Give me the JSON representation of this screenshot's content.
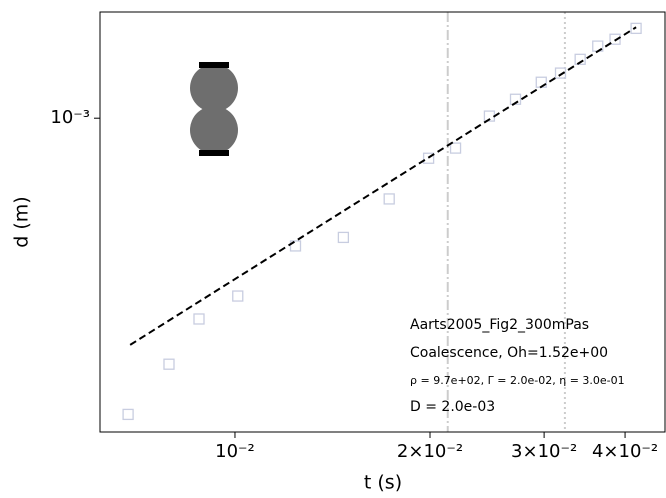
{
  "chart_data": {
    "type": "scatter",
    "xlabel": "t (s)",
    "ylabel": "d (m)",
    "xscale": "log",
    "yscale": "log",
    "xlim": [
      0.00619,
      0.0461
    ],
    "ylim": [
      0.000412,
      0.00135
    ],
    "xticks": [
      {
        "value": 0.01,
        "label": "10⁻²"
      },
      {
        "value": 0.02,
        "label": "2×10⁻²"
      },
      {
        "value": 0.03,
        "label": "3×10⁻²"
      },
      {
        "value": 0.04,
        "label": "4×10⁻²"
      }
    ],
    "yticks": [
      {
        "value": 0.001,
        "label": "10⁻³"
      }
    ],
    "series": [
      {
        "color": "#c8cde0",
        "x": [
          0.00684,
          0.00791,
          0.0088,
          0.0101,
          0.0124,
          0.0147,
          0.0173,
          0.0199,
          0.0219,
          0.0247,
          0.0271,
          0.0297,
          0.0318,
          0.0341,
          0.0363,
          0.0386,
          0.0416
        ],
        "values": [
          0.000433,
          0.000499,
          0.000567,
          0.000605,
          0.000697,
          0.000714,
          0.000796,
          0.000893,
          0.000919,
          0.001006,
          0.001055,
          0.001107,
          0.001136,
          0.001181,
          0.001226,
          0.00125,
          0.001289
        ]
      }
    ],
    "fit": {
      "color": "#000000",
      "x": [
        0.00689,
        0.0416
      ],
      "values": [
        0.000527,
        0.001293
      ]
    },
    "vlines": [
      {
        "x": 0.0213,
        "style": "dashdot",
        "color": "#cccccc"
      },
      {
        "x": 0.0323,
        "style": "dotted",
        "color": "#cccccc"
      }
    ],
    "annotations": [
      "Aarts2005_Fig2_300mPas",
      "Coalescence, Oh=1.52e+00",
      "ρ = 9.7e+02, Γ = 2.0e-02, η = 3.0e-01",
      "D = 2.0e-03"
    ]
  }
}
